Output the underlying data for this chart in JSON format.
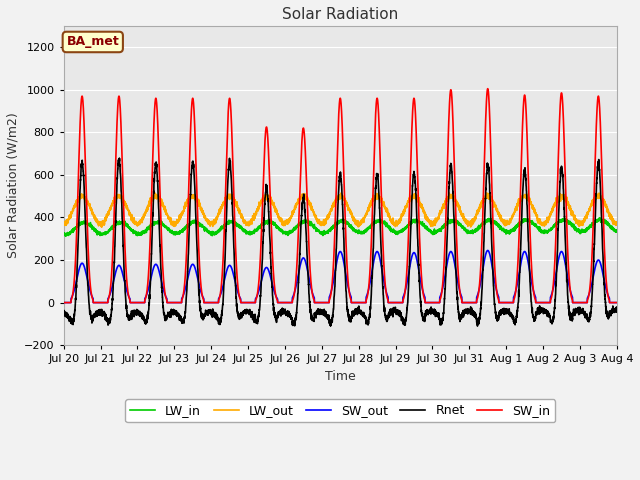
{
  "title": "Solar Radiation",
  "xlabel": "Time",
  "ylabel": "Solar Radiation (W/m2)",
  "ylim": [
    -200,
    1300
  ],
  "yticks": [
    -200,
    0,
    200,
    400,
    600,
    800,
    1000,
    1200
  ],
  "label_text": "BA_met",
  "x_tick_labels": [
    "Jul 20",
    "Jul 21",
    "Jul 22",
    "Jul 23",
    "Jul 24",
    "Jul 25",
    "Jul 26",
    "Jul 27",
    "Jul 28",
    "Jul 29",
    "Jul 30",
    "Jul 31",
    "Aug 1",
    "Aug 2",
    "Aug 3",
    "Aug 4"
  ],
  "colors": {
    "SW_in": "#ff0000",
    "SW_out": "#0000ff",
    "LW_in": "#00cc00",
    "LW_out": "#ffaa00",
    "Rnet": "#000000"
  },
  "linewidths": {
    "SW_in": 1.2,
    "SW_out": 1.2,
    "LW_in": 1.2,
    "LW_out": 1.2,
    "Rnet": 1.2
  },
  "fig_bg": "#f2f2f2",
  "plot_bg": "#e8e8e8",
  "grid_color": "#ffffff",
  "n_days": 15,
  "points_per_day": 288,
  "sw_in_peaks": [
    970,
    970,
    960,
    960,
    960,
    825,
    820,
    960,
    960,
    960,
    1000,
    1005,
    975,
    985,
    970
  ],
  "sw_out_peaks": [
    185,
    175,
    180,
    180,
    175,
    165,
    210,
    240,
    240,
    235,
    240,
    245,
    240,
    240,
    200
  ],
  "lw_in_base": 320,
  "lw_in_amp": 55,
  "lw_out_base": 370,
  "lw_out_amp": 130,
  "rnet_night": -75
}
